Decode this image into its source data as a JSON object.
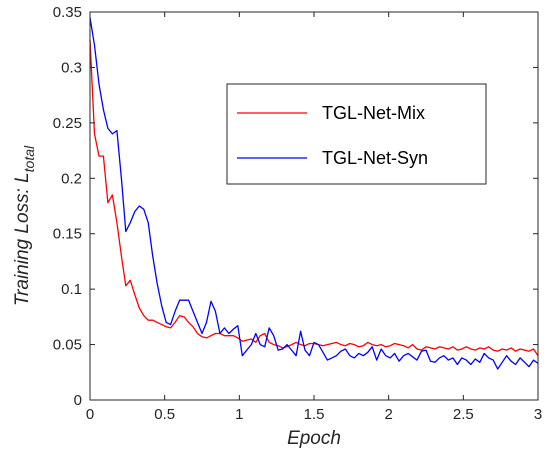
{
  "chart_data": {
    "type": "line",
    "xlabel": "Epoch",
    "ylabel": "Training Loss: ",
    "ylabel_symbol": "L",
    "ylabel_subscript": "total",
    "xlim": [
      0,
      3
    ],
    "ylim": [
      0,
      0.35
    ],
    "xticks": [
      0,
      0.5,
      1,
      1.5,
      2,
      2.5,
      3
    ],
    "xtick_labels": [
      "0",
      "0.5",
      "1",
      "1.5",
      "2",
      "2.5",
      "3"
    ],
    "yticks": [
      0,
      0.05,
      0.1,
      0.15,
      0.2,
      0.25,
      0.3,
      0.35
    ],
    "ytick_labels": [
      "0",
      "0.05",
      "0.1",
      "0.15",
      "0.2",
      "0.25",
      "0.3",
      "0.35"
    ],
    "grid": false,
    "legend_position": "top-right",
    "series": [
      {
        "name": "TGL-Net-Mix",
        "color": "#ff0000",
        "x": [
          0,
          0.03,
          0.06,
          0.09,
          0.12,
          0.15,
          0.18,
          0.21,
          0.24,
          0.27,
          0.3,
          0.33,
          0.36,
          0.39,
          0.42,
          0.45,
          0.48,
          0.51,
          0.54,
          0.57,
          0.6,
          0.63,
          0.66,
          0.69,
          0.72,
          0.75,
          0.78,
          0.81,
          0.84,
          0.87,
          0.9,
          0.93,
          0.96,
          0.99,
          1.02,
          1.05,
          1.08,
          1.11,
          1.14,
          1.17,
          1.2,
          1.23,
          1.26,
          1.29,
          1.32,
          1.35,
          1.38,
          1.41,
          1.44,
          1.47,
          1.5,
          1.53,
          1.56,
          1.59,
          1.62,
          1.65,
          1.68,
          1.71,
          1.74,
          1.77,
          1.8,
          1.83,
          1.86,
          1.89,
          1.92,
          1.95,
          1.98,
          2.01,
          2.04,
          2.07,
          2.1,
          2.13,
          2.16,
          2.19,
          2.22,
          2.25,
          2.28,
          2.31,
          2.34,
          2.37,
          2.4,
          2.43,
          2.46,
          2.49,
          2.52,
          2.55,
          2.58,
          2.61,
          2.64,
          2.67,
          2.7,
          2.73,
          2.76,
          2.79,
          2.82,
          2.85,
          2.88,
          2.91,
          2.94,
          2.97,
          3.0
        ],
        "y": [
          0.325,
          0.24,
          0.22,
          0.22,
          0.178,
          0.185,
          0.16,
          0.13,
          0.103,
          0.108,
          0.095,
          0.083,
          0.076,
          0.072,
          0.072,
          0.07,
          0.068,
          0.066,
          0.065,
          0.07,
          0.076,
          0.075,
          0.07,
          0.066,
          0.06,
          0.057,
          0.056,
          0.058,
          0.06,
          0.06,
          0.058,
          0.058,
          0.058,
          0.056,
          0.053,
          0.054,
          0.055,
          0.052,
          0.058,
          0.06,
          0.052,
          0.05,
          0.049,
          0.047,
          0.048,
          0.05,
          0.052,
          0.05,
          0.049,
          0.051,
          0.051,
          0.05,
          0.049,
          0.05,
          0.051,
          0.052,
          0.05,
          0.049,
          0.051,
          0.05,
          0.048,
          0.049,
          0.052,
          0.05,
          0.049,
          0.05,
          0.048,
          0.049,
          0.051,
          0.05,
          0.049,
          0.047,
          0.05,
          0.046,
          0.045,
          0.048,
          0.047,
          0.046,
          0.048,
          0.047,
          0.046,
          0.048,
          0.045,
          0.046,
          0.048,
          0.046,
          0.045,
          0.047,
          0.046,
          0.048,
          0.045,
          0.044,
          0.046,
          0.045,
          0.047,
          0.044,
          0.046,
          0.045,
          0.044,
          0.046,
          0.04
        ]
      },
      {
        "name": "TGL-Net-Syn",
        "color": "#0000ff",
        "x": [
          0,
          0.03,
          0.06,
          0.09,
          0.12,
          0.15,
          0.18,
          0.21,
          0.24,
          0.27,
          0.3,
          0.33,
          0.36,
          0.39,
          0.42,
          0.45,
          0.48,
          0.51,
          0.54,
          0.57,
          0.6,
          0.63,
          0.66,
          0.69,
          0.72,
          0.75,
          0.78,
          0.81,
          0.84,
          0.87,
          0.9,
          0.93,
          0.96,
          0.99,
          1.02,
          1.05,
          1.08,
          1.11,
          1.14,
          1.17,
          1.2,
          1.23,
          1.26,
          1.29,
          1.32,
          1.35,
          1.38,
          1.41,
          1.44,
          1.47,
          1.5,
          1.53,
          1.56,
          1.59,
          1.62,
          1.65,
          1.68,
          1.71,
          1.74,
          1.77,
          1.8,
          1.83,
          1.86,
          1.89,
          1.92,
          1.95,
          1.98,
          2.01,
          2.04,
          2.07,
          2.1,
          2.13,
          2.16,
          2.19,
          2.22,
          2.25,
          2.28,
          2.31,
          2.34,
          2.37,
          2.4,
          2.43,
          2.46,
          2.49,
          2.52,
          2.55,
          2.58,
          2.61,
          2.64,
          2.67,
          2.7,
          2.73,
          2.76,
          2.79,
          2.82,
          2.85,
          2.88,
          2.91,
          2.94,
          2.97,
          3.0
        ],
        "y": [
          0.345,
          0.32,
          0.285,
          0.262,
          0.245,
          0.24,
          0.243,
          0.2,
          0.152,
          0.16,
          0.17,
          0.175,
          0.172,
          0.16,
          0.13,
          0.105,
          0.085,
          0.07,
          0.068,
          0.08,
          0.09,
          0.09,
          0.09,
          0.08,
          0.07,
          0.06,
          0.07,
          0.089,
          0.08,
          0.06,
          0.065,
          0.06,
          0.064,
          0.067,
          0.04,
          0.045,
          0.05,
          0.06,
          0.05,
          0.048,
          0.065,
          0.058,
          0.045,
          0.046,
          0.05,
          0.045,
          0.04,
          0.062,
          0.045,
          0.04,
          0.052,
          0.05,
          0.043,
          0.036,
          0.038,
          0.04,
          0.044,
          0.046,
          0.04,
          0.038,
          0.042,
          0.04,
          0.043,
          0.048,
          0.036,
          0.046,
          0.04,
          0.038,
          0.042,
          0.035,
          0.04,
          0.042,
          0.039,
          0.036,
          0.044,
          0.045,
          0.035,
          0.034,
          0.038,
          0.04,
          0.036,
          0.038,
          0.032,
          0.038,
          0.036,
          0.032,
          0.037,
          0.034,
          0.042,
          0.038,
          0.036,
          0.028,
          0.034,
          0.04,
          0.035,
          0.032,
          0.038,
          0.034,
          0.03,
          0.036,
          0.033
        ]
      }
    ]
  }
}
